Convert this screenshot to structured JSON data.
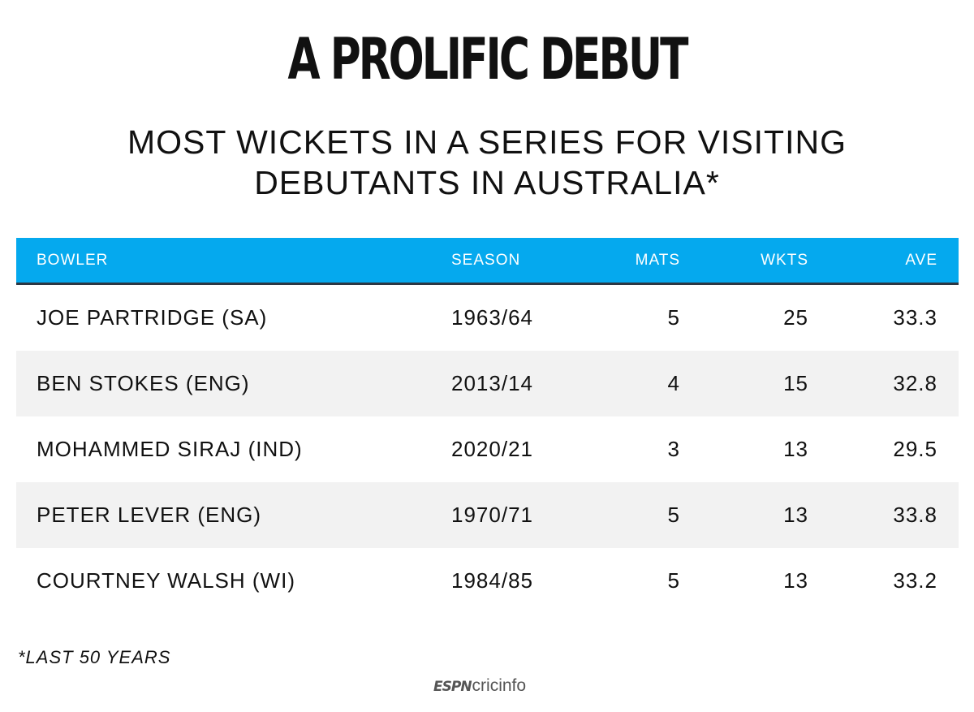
{
  "title": "A PROLIFIC DEBUT",
  "subtitle_line1": "MOST WICKETS IN A SERIES FOR VISITING",
  "subtitle_line2": "DEBUTANTS IN AUSTRALIA*",
  "footnote": "*LAST 50 YEARS",
  "logo": {
    "part1": "ESPN",
    "part2": "cricinfo"
  },
  "colors": {
    "header_bg": "#05a9ee",
    "header_rule": "#2c3743",
    "alt_row": "#f2f2f2",
    "text": "#111111"
  },
  "chart_data": {
    "type": "table",
    "title": "A PROLIFIC DEBUT",
    "subtitle": "MOST WICKETS IN A SERIES FOR VISITING DEBUTANTS IN AUSTRALIA*",
    "columns": [
      "BOWLER",
      "SEASON",
      "MATS",
      "WKTS",
      "AVE"
    ],
    "rows": [
      [
        "JOE PARTRIDGE (SA)",
        "1963/64",
        "5",
        "25",
        "33.3"
      ],
      [
        "BEN STOKES (ENG)",
        "2013/14",
        "4",
        "15",
        "32.8"
      ],
      [
        "MOHAMMED SIRAJ (IND)",
        "2020/21",
        "3",
        "13",
        "29.5"
      ],
      [
        "PETER LEVER (ENG)",
        "1970/71",
        "5",
        "13",
        "33.8"
      ],
      [
        "COURTNEY WALSH (WI)",
        "1984/85",
        "5",
        "13",
        "33.2"
      ]
    ]
  }
}
